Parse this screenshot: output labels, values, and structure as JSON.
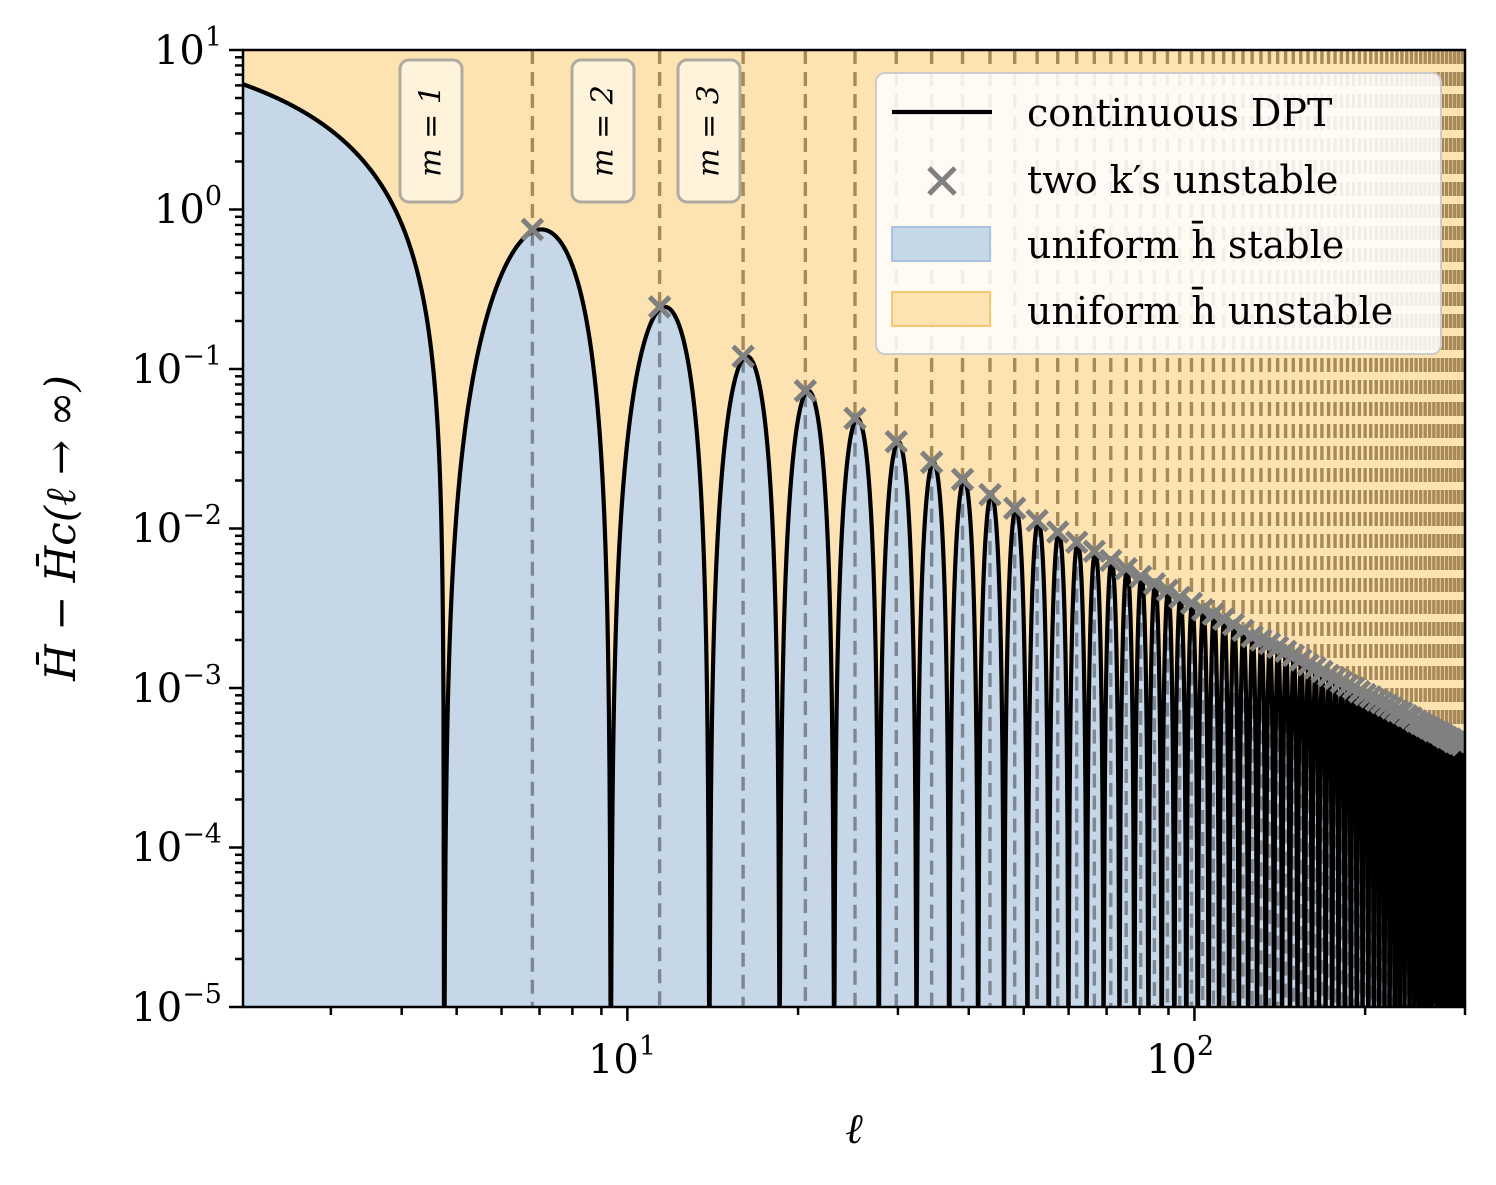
{
  "chart_data": {
    "type": "line",
    "xscale": "log",
    "yscale": "log",
    "xlim": [
      2.1,
      300
    ],
    "ylim": [
      1e-05,
      10
    ],
    "xlabel": "ℓ",
    "ylabel": "H̄ − H̄c(ℓ → ∞)",
    "x_ticks": [
      {
        "base": "10",
        "exp": "1",
        "value": 10
      },
      {
        "base": "10",
        "exp": "2",
        "value": 100
      }
    ],
    "y_ticks": [
      {
        "base": "10",
        "exp": "1",
        "value": 10
      },
      {
        "base": "10",
        "exp": "0",
        "value": 1
      },
      {
        "base": "10",
        "exp": "−1",
        "value": 0.1
      },
      {
        "base": "10",
        "exp": "−2",
        "value": 0.01
      },
      {
        "base": "10",
        "exp": "−3",
        "value": 0.001
      },
      {
        "base": "10",
        "exp": "−4",
        "value": 0.0001
      },
      {
        "base": "10",
        "exp": "−5",
        "value": 1e-05
      }
    ],
    "series": [
      {
        "name": "continuous DPT",
        "kind": "line",
        "color": "#000000",
        "description": "Lobed curve dropping to zero at nodes ℓ = 4.75 + 4.6·n; first branch decays from ≈6.1 at ℓ≈2.1",
        "first_branch_start_value": 6.1,
        "node_start": 4.75,
        "node_spacing": 4.6
      },
      {
        "name": "two k′s unstable",
        "kind": "scatter",
        "marker": "x",
        "color": "#808080",
        "x": [
          6.8,
          11.4,
          16.0,
          20.6,
          25.2,
          29.8,
          34.4,
          39.0,
          43.6,
          48.2,
          52.8,
          57.4,
          62.0,
          66.6,
          71.2,
          75.8,
          80.4,
          85.0,
          89.6,
          94.2,
          98.8,
          103.4,
          108.0,
          112.6,
          117.2,
          121.8,
          126.4,
          131.0,
          135.6,
          140.2,
          144.8,
          149.4,
          154.0,
          158.6,
          163.2,
          167.8,
          172.4,
          177.0,
          181.6,
          186.2,
          190.8,
          195.4,
          200.0,
          204.6,
          209.2,
          213.8,
          218.4,
          223.0,
          227.6,
          232.2,
          236.8,
          241.4,
          246.0,
          250.6,
          255.2,
          259.8,
          264.4,
          269.0,
          273.6,
          278.2,
          282.8,
          287.4,
          292.0,
          296.6
        ],
        "y": [
          0.75,
          0.245,
          0.12,
          0.073,
          0.049,
          0.035,
          0.026,
          0.0203,
          0.0163,
          0.0134,
          0.0112,
          0.0095,
          0.0082,
          0.0072,
          0.0063,
          0.0056,
          0.005,
          0.0045,
          0.0041,
          0.0037,
          0.0034,
          0.0031,
          0.0029,
          0.0027,
          0.0025,
          0.0023,
          0.0021,
          0.002,
          0.0019,
          0.0018,
          0.0017,
          0.0016,
          0.0015,
          0.0014,
          0.00134,
          0.00127,
          0.0012,
          0.00115,
          0.00109,
          0.00104,
          0.001,
          0.00095,
          0.00091,
          0.00088,
          0.00084,
          0.00081,
          0.00078,
          0.00075,
          0.00072,
          0.0007,
          0.00067,
          0.00065,
          0.00062,
          0.0006,
          0.00058,
          0.00056,
          0.00054,
          0.00053,
          0.00051,
          0.00049,
          0.00048,
          0.00046,
          0.00045,
          0.00044
        ]
      }
    ],
    "regions": [
      {
        "name": "uniform h̄ stable",
        "color": "#c6d7e8"
      },
      {
        "name": "uniform h̄ unstable",
        "color": "#fde3b2"
      }
    ],
    "vlines": {
      "color": "#a8895a",
      "style": "dashed",
      "x": [
        6.8,
        11.4,
        16.0,
        20.6,
        25.2,
        29.8,
        34.4,
        39.0,
        43.6,
        48.2,
        52.8,
        57.4,
        62.0,
        66.6,
        71.2,
        75.8,
        80.4,
        85.0,
        89.6,
        94.2,
        98.8,
        103.4,
        108.0,
        112.6,
        117.2,
        121.8,
        126.4,
        131.0,
        135.6,
        140.2,
        144.8,
        149.4,
        154.0,
        158.6,
        163.2,
        167.8,
        172.4,
        177.0,
        181.6,
        186.2,
        190.8,
        195.4,
        200.0,
        204.6,
        209.2,
        213.8,
        218.4,
        223.0,
        227.6,
        232.2,
        236.8,
        241.4,
        246.0,
        250.6,
        255.2,
        259.8,
        264.4,
        269.0,
        273.6,
        278.2,
        282.8,
        287.4,
        292.0,
        296.6
      ]
    },
    "annotations": [
      {
        "text": "m = 1",
        "x": 4.35
      },
      {
        "text": "m = 2",
        "x": 8.9
      },
      {
        "text": "m = 3",
        "x": 13.7
      }
    ],
    "legend": {
      "position": "top-right",
      "entries": [
        {
          "kind": "line",
          "label": "continuous DPT",
          "color": "#000000"
        },
        {
          "kind": "marker",
          "label": "two k′s unstable",
          "color": "#808080"
        },
        {
          "kind": "patch",
          "label": "uniform h̄ stable",
          "color": "#c6d7e8"
        },
        {
          "kind": "patch",
          "label": "uniform h̄ unstable",
          "color": "#fde3b2"
        }
      ]
    }
  }
}
